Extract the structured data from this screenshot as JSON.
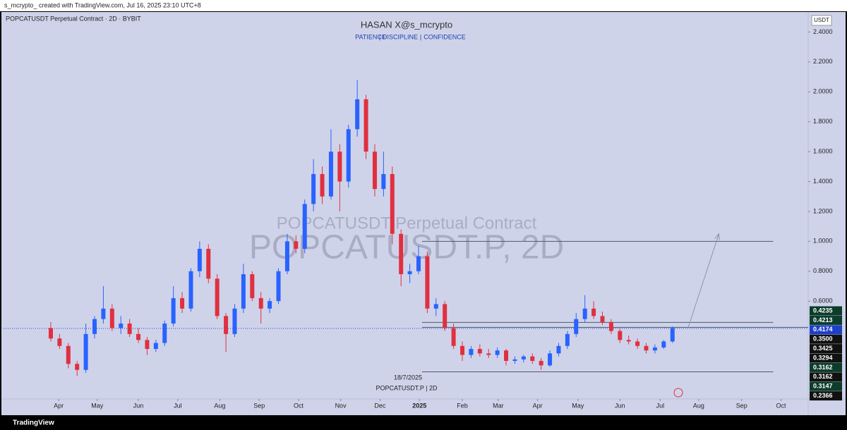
{
  "header": {
    "credit": "s_mcrypto_ created with TradingView.com, Jul 16, 2025 23:10 UTC+8",
    "footer": "TradingView"
  },
  "chart_data": {
    "type": "candlestick",
    "symbol": "POPCATUSDT Perpetual Contract · 2D · BYBIT",
    "title": "HASAN X@s_mcrypto",
    "subtitle": [
      "PATIENCE",
      "DISCIPLINE",
      "CONFIDENCE"
    ],
    "watermark": [
      "POPCATUSDT.P, 2D",
      "POPCATUSDT Perpetual Contract"
    ],
    "currency": "USDT",
    "date_label": "18/7/2025",
    "symbol_label": "POPCATUSDT.P | 2D",
    "up_color": "#2962ff",
    "down_color": "#e0303f",
    "open": [
      0.42,
      0.35,
      0.3,
      0.18,
      0.14,
      0.38,
      0.48,
      0.55,
      0.42,
      0.45,
      0.38,
      0.34,
      0.28,
      0.32,
      0.45,
      0.62,
      0.55,
      0.8,
      0.95,
      0.75,
      0.5,
      0.38,
      0.55,
      0.78,
      0.62,
      0.55,
      0.6,
      0.8,
      1.0,
      0.95,
      1.25,
      1.45,
      1.3,
      1.6,
      1.4,
      1.75,
      1.95,
      1.6,
      1.35,
      1.45,
      1.05,
      0.78,
      0.8,
      0.9,
      0.55,
      0.58,
      0.42,
      0.3,
      0.24,
      0.28,
      0.25,
      0.24,
      0.27,
      0.2,
      0.21,
      0.23,
      0.2,
      0.17,
      0.25,
      0.3,
      0.38,
      0.48,
      0.55,
      0.5,
      0.46,
      0.4,
      0.34,
      0.33,
      0.3,
      0.27,
      0.29,
      0.33
    ],
    "high": [
      0.46,
      0.38,
      0.32,
      0.2,
      0.45,
      0.5,
      0.7,
      0.58,
      0.5,
      0.48,
      0.42,
      0.36,
      0.34,
      0.47,
      0.7,
      0.66,
      0.82,
      1.0,
      0.98,
      0.78,
      0.52,
      0.58,
      0.85,
      0.8,
      0.66,
      0.62,
      0.82,
      1.05,
      1.04,
      1.28,
      1.55,
      1.5,
      1.75,
      1.65,
      1.78,
      2.08,
      1.98,
      1.65,
      1.6,
      1.5,
      1.08,
      0.85,
      0.97,
      0.93,
      0.62,
      0.6,
      0.45,
      0.33,
      0.3,
      0.31,
      0.28,
      0.29,
      0.28,
      0.23,
      0.24,
      0.25,
      0.22,
      0.27,
      0.32,
      0.4,
      0.52,
      0.64,
      0.6,
      0.53,
      0.48,
      0.42,
      0.37,
      0.35,
      0.32,
      0.31,
      0.34,
      0.43
    ],
    "low": [
      0.33,
      0.28,
      0.15,
      0.1,
      0.12,
      0.35,
      0.45,
      0.4,
      0.38,
      0.36,
      0.32,
      0.24,
      0.26,
      0.3,
      0.43,
      0.52,
      0.53,
      0.76,
      0.72,
      0.48,
      0.26,
      0.36,
      0.52,
      0.6,
      0.45,
      0.52,
      0.58,
      0.78,
      0.92,
      0.92,
      1.2,
      1.25,
      1.28,
      1.2,
      1.36,
      1.7,
      1.55,
      1.3,
      1.3,
      0.98,
      0.7,
      0.72,
      0.78,
      0.52,
      0.5,
      0.4,
      0.28,
      0.2,
      0.22,
      0.23,
      0.22,
      0.22,
      0.17,
      0.18,
      0.19,
      0.18,
      0.14,
      0.16,
      0.23,
      0.28,
      0.36,
      0.46,
      0.48,
      0.44,
      0.38,
      0.32,
      0.31,
      0.28,
      0.25,
      0.25,
      0.28,
      0.32
    ],
    "close": [
      0.35,
      0.3,
      0.18,
      0.14,
      0.38,
      0.48,
      0.55,
      0.42,
      0.45,
      0.38,
      0.34,
      0.28,
      0.32,
      0.45,
      0.62,
      0.55,
      0.8,
      0.95,
      0.75,
      0.5,
      0.38,
      0.55,
      0.78,
      0.62,
      0.55,
      0.6,
      0.8,
      1.0,
      0.95,
      1.25,
      1.45,
      1.3,
      1.6,
      1.4,
      1.75,
      1.95,
      1.6,
      1.35,
      1.45,
      1.05,
      0.78,
      0.8,
      0.9,
      0.55,
      0.58,
      0.42,
      0.3,
      0.24,
      0.28,
      0.25,
      0.24,
      0.27,
      0.2,
      0.21,
      0.23,
      0.2,
      0.17,
      0.25,
      0.3,
      0.38,
      0.48,
      0.55,
      0.5,
      0.46,
      0.4,
      0.34,
      0.33,
      0.3,
      0.27,
      0.29,
      0.33,
      0.42
    ],
    "xlim": [
      -5.4,
      86.5
    ],
    "xticks": [
      {
        "value": 0.9,
        "label": "Apr"
      },
      {
        "value": 5.3,
        "label": "May"
      },
      {
        "value": 10,
        "label": "Jun"
      },
      {
        "value": 14.5,
        "label": "Jul"
      },
      {
        "value": 19.3,
        "label": "Aug"
      },
      {
        "value": 23.8,
        "label": "Sep"
      },
      {
        "value": 28.3,
        "label": "Oct"
      },
      {
        "value": 33.1,
        "label": "Nov"
      },
      {
        "value": 37.6,
        "label": "Dec"
      },
      {
        "value": 42.1,
        "label": "2025"
      },
      {
        "value": 47,
        "label": "Feb"
      },
      {
        "value": 51.1,
        "label": "Mar"
      },
      {
        "value": 55.6,
        "label": "Apr"
      },
      {
        "value": 60.2,
        "label": "May"
      },
      {
        "value": 65,
        "label": "Jun"
      },
      {
        "value": 69.6,
        "label": "Jul"
      },
      {
        "value": 74,
        "label": "Aug"
      },
      {
        "value": 78.9,
        "label": "Sep"
      },
      {
        "value": 83.4,
        "label": "Oct"
      }
    ],
    "ylim": [
      -0.05,
      2.52
    ],
    "yticks": [
      {
        "value": 2.4,
        "label": "2.4000"
      },
      {
        "value": 2.2,
        "label": "2.2000"
      },
      {
        "value": 2.0,
        "label": "2.0000"
      },
      {
        "value": 1.8,
        "label": "1.8000"
      },
      {
        "value": 1.6,
        "label": "1.6000"
      },
      {
        "value": 1.4,
        "label": "1.4000"
      },
      {
        "value": 1.2,
        "label": "1.2000"
      },
      {
        "value": 1.0,
        "label": "1.0000"
      },
      {
        "value": 0.8,
        "label": "0.8000"
      },
      {
        "value": 0.6,
        "label": "0.6000"
      }
    ],
    "levels": [
      {
        "value": 1.0,
        "from": 42.4,
        "to": 82.5
      },
      {
        "value": 0.4575,
        "from": 42.4,
        "to": 82.5
      },
      {
        "value": 0.4245,
        "from": 42.4,
        "to": 86.5
      },
      {
        "value": 0.127,
        "from": 42.4,
        "to": 82.5
      }
    ],
    "arrow": {
      "from": [
        72.8,
        0.4245
      ],
      "to": [
        76.3,
        1.05
      ]
    },
    "last_price": 0.4174,
    "price_labels": [
      {
        "label": "0.4235",
        "color": "#0b3d2a"
      },
      {
        "label": "0.4213",
        "color": "#0b3d2a"
      },
      {
        "label": "0.4174",
        "color": "#1e40c8"
      },
      {
        "label": "0.3500",
        "color": "#111111"
      },
      {
        "label": "0.3425",
        "color": "#111111"
      },
      {
        "label": "0.3294",
        "color": "#111111"
      },
      {
        "label": "0.3162",
        "color": "#0b3d2a"
      },
      {
        "label": "0.3162",
        "color": "#111111"
      },
      {
        "label": "0.3147",
        "color": "#0b3d2a"
      },
      {
        "label": "0.2366",
        "color": "#111111"
      }
    ]
  }
}
